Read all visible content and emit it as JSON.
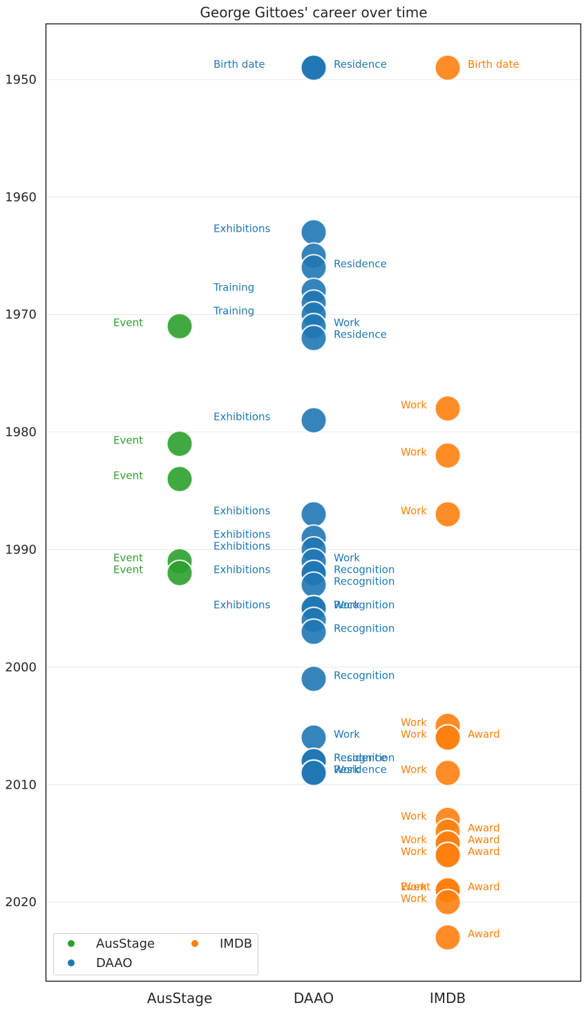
{
  "chart_data": {
    "type": "scatter",
    "title": "George Gittoes' career over time",
    "xlabel": "",
    "ylabel": "",
    "categories": [
      "AusStage",
      "DAAO",
      "IMDB"
    ],
    "y_reversed": true,
    "ylim": [
      1945.3,
      2026.7
    ],
    "yticks": [
      1950,
      1960,
      1970,
      1980,
      1990,
      2000,
      2010,
      2020
    ],
    "grid": "horizontal",
    "legend": {
      "placement": "bottom-left",
      "columns": 2,
      "entries": [
        {
          "name": "AusStage",
          "color": "#2ca02c"
        },
        {
          "name": "DAAO",
          "color": "#1f77b4"
        },
        {
          "name": "IMDB",
          "color": "#ff7f0e"
        }
      ]
    },
    "colors": {
      "AusStage": "#2ca02c",
      "DAAO": "#1f77b4",
      "IMDB": "#ff7f0e"
    },
    "series": [
      {
        "name": "AusStage",
        "points": [
          {
            "year": 1971,
            "label": "Event",
            "side": "left"
          },
          {
            "year": 1981,
            "label": "Event",
            "side": "left"
          },
          {
            "year": 1984,
            "label": "Event",
            "side": "left"
          },
          {
            "year": 1991,
            "label": "Event",
            "side": "left"
          },
          {
            "year": 1992,
            "label": "Event",
            "side": "left"
          }
        ]
      },
      {
        "name": "DAAO",
        "points": [
          {
            "year": 1949,
            "label": "Birth date",
            "side": "left"
          },
          {
            "year": 1949,
            "label": "Residence",
            "side": "right"
          },
          {
            "year": 1963,
            "label": "Exhibitions",
            "side": "left"
          },
          {
            "year": 1965,
            "label": "",
            "side": "right"
          },
          {
            "year": 1966,
            "label": "Residence",
            "side": "right"
          },
          {
            "year": 1968,
            "label": "Training",
            "side": "left"
          },
          {
            "year": 1969,
            "label": "",
            "side": "left"
          },
          {
            "year": 1970,
            "label": "Training",
            "side": "left"
          },
          {
            "year": 1971,
            "label": "Work",
            "side": "right"
          },
          {
            "year": 1972,
            "label": "Residence",
            "side": "right"
          },
          {
            "year": 1979,
            "label": "Exhibitions",
            "side": "left"
          },
          {
            "year": 1987,
            "label": "Exhibitions",
            "side": "left"
          },
          {
            "year": 1989,
            "label": "Exhibitions",
            "side": "left"
          },
          {
            "year": 1990,
            "label": "Exhibitions",
            "side": "left"
          },
          {
            "year": 1991,
            "label": "Work",
            "side": "right"
          },
          {
            "year": 1992,
            "label": "Exhibitions",
            "side": "left"
          },
          {
            "year": 1992,
            "label": "Recognition",
            "side": "right"
          },
          {
            "year": 1993,
            "label": "Recognition",
            "side": "right"
          },
          {
            "year": 1995,
            "label": "Exhibitions",
            "side": "left"
          },
          {
            "year": 1995,
            "label": "Work",
            "side": "right"
          },
          {
            "year": 1995,
            "label": "Recognition",
            "side": "right"
          },
          {
            "year": 1996,
            "label": "",
            "side": "right"
          },
          {
            "year": 1997,
            "label": "Recognition",
            "side": "right"
          },
          {
            "year": 2001,
            "label": "Recognition",
            "side": "right"
          },
          {
            "year": 2006,
            "label": "Work",
            "side": "right"
          },
          {
            "year": 2008,
            "label": "Residence",
            "side": "right"
          },
          {
            "year": 2008,
            "label": "Recognition",
            "side": "right"
          },
          {
            "year": 2009,
            "label": "Work",
            "side": "right"
          },
          {
            "year": 2009,
            "label": "Residence",
            "side": "right"
          }
        ]
      },
      {
        "name": "IMDB",
        "points": [
          {
            "year": 1949,
            "label": "Birth date",
            "side": "right"
          },
          {
            "year": 1978,
            "label": "Work",
            "side": "left"
          },
          {
            "year": 1982,
            "label": "Work",
            "side": "left"
          },
          {
            "year": 1987,
            "label": "Work",
            "side": "left"
          },
          {
            "year": 2005,
            "label": "Work",
            "side": "left"
          },
          {
            "year": 2006,
            "label": "Work",
            "side": "left"
          },
          {
            "year": 2006,
            "label": "Award",
            "side": "right"
          },
          {
            "year": 2009,
            "label": "Work",
            "side": "left"
          },
          {
            "year": 2013,
            "label": "Work",
            "side": "left"
          },
          {
            "year": 2014,
            "label": "Award",
            "side": "right"
          },
          {
            "year": 2015,
            "label": "Work",
            "side": "left"
          },
          {
            "year": 2015,
            "label": "Award",
            "side": "right"
          },
          {
            "year": 2016,
            "label": "Work",
            "side": "left"
          },
          {
            "year": 2016,
            "label": "Award",
            "side": "right"
          },
          {
            "year": 2019,
            "label": "Work",
            "side": "left"
          },
          {
            "year": 2019,
            "label": "Event",
            "side": "left"
          },
          {
            "year": 2019,
            "label": "Award",
            "side": "right"
          },
          {
            "year": 2020,
            "label": "Work",
            "side": "left"
          },
          {
            "year": 2023,
            "label": "Award",
            "side": "right"
          }
        ]
      }
    ]
  }
}
